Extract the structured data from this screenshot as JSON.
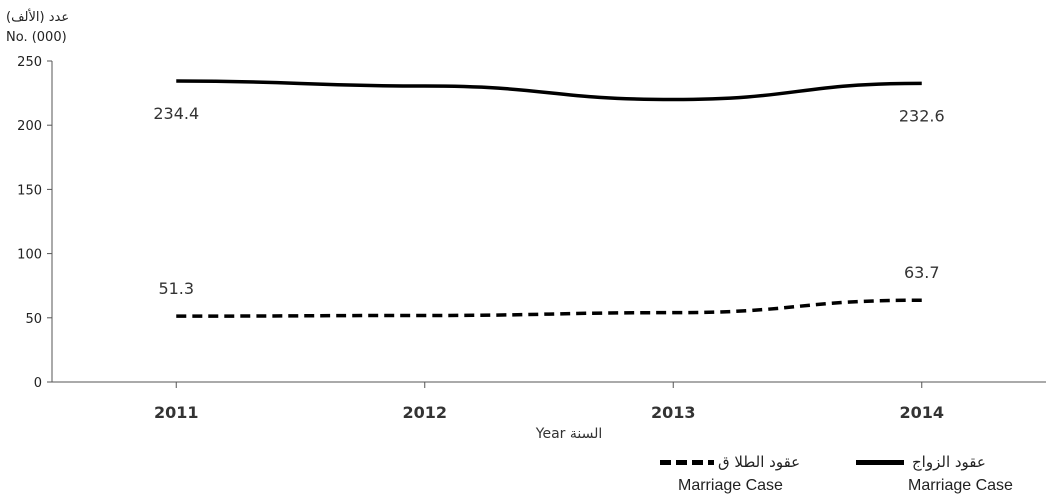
{
  "chart_data": {
    "type": "line",
    "ylabel_ar": "عدد (الألف)",
    "ylabel_en": "No. (000)",
    "xlabel": "Year السنة",
    "categories": [
      "2011",
      "2012",
      "2013",
      "2014"
    ],
    "ylim": [
      0,
      250
    ],
    "yticks": [
      0,
      50,
      100,
      150,
      200,
      250
    ],
    "grid": false,
    "series": [
      {
        "name_ar": "عقود الزواج",
        "name_en": "Marriage Case",
        "style": "solid",
        "color": "#000000",
        "values": [
          234.4,
          230.5,
          220.0,
          232.6
        ],
        "labels": [
          "234.4",
          "",
          "",
          "232.6"
        ]
      },
      {
        "name_ar": "عقود الطلا ق",
        "name_en": "Marriage Case",
        "style": "dashed",
        "color": "#000000",
        "values": [
          51.3,
          51.8,
          54.0,
          63.7
        ],
        "labels": [
          "51.3",
          "",
          "",
          "63.7"
        ]
      }
    ],
    "legend_position": "bottom-right"
  }
}
